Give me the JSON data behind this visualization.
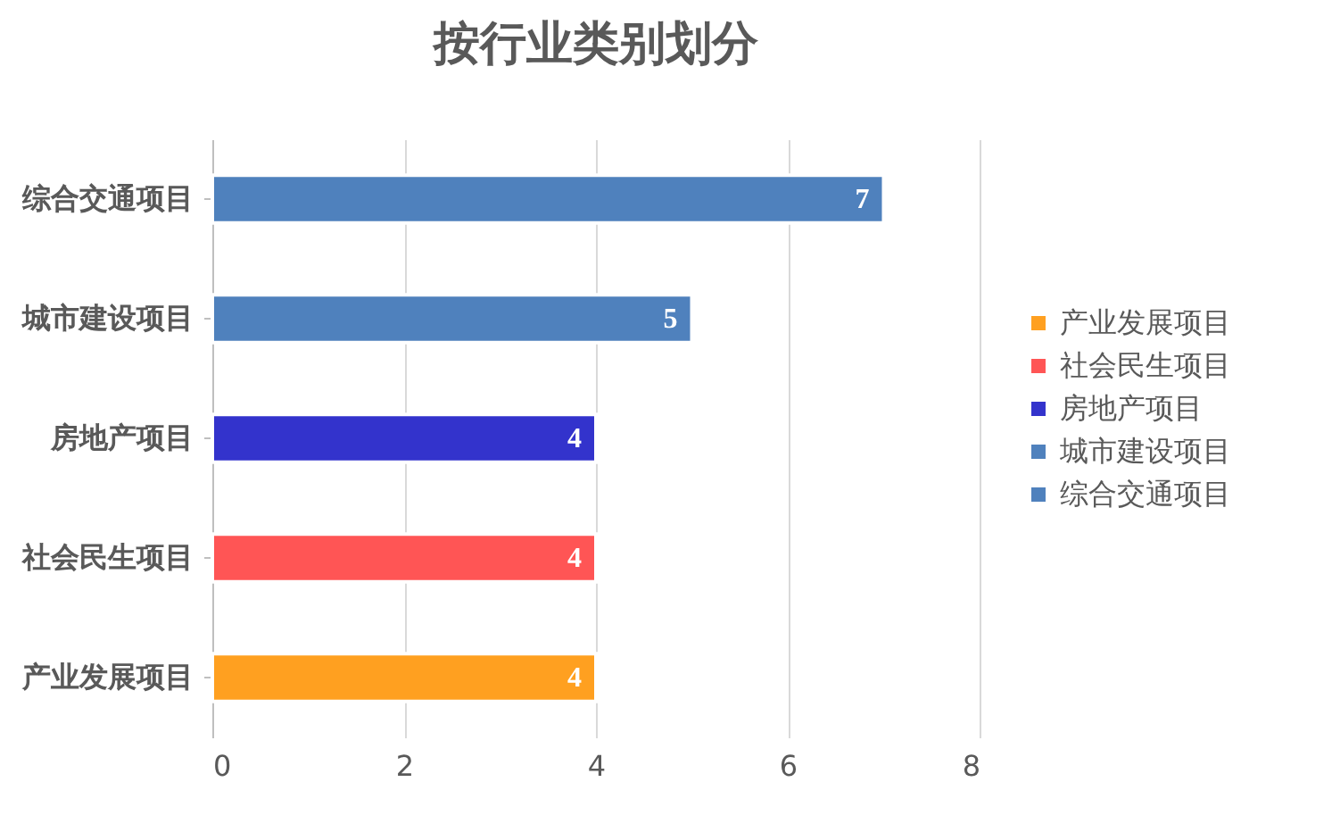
{
  "chart_data": {
    "type": "bar",
    "orientation": "horizontal",
    "title": "按行业类别划分",
    "categories": [
      "综合交通项目",
      "城市建设项目",
      "房地产项目",
      "社会民生项目",
      "产业发展项目"
    ],
    "series": [
      {
        "name": "产业发展项目",
        "color": "#ffa020",
        "values": [
          null,
          null,
          null,
          null,
          4
        ]
      },
      {
        "name": "社会民生项目",
        "color": "#ff5555",
        "values": [
          null,
          null,
          null,
          4,
          null
        ]
      },
      {
        "name": "房地产项目",
        "color": "#3333cc",
        "values": [
          null,
          null,
          4,
          null,
          null
        ]
      },
      {
        "name": "城市建设项目",
        "color": "#4f81bd",
        "values": [
          null,
          5,
          null,
          null,
          null
        ]
      },
      {
        "name": "综合交通项目",
        "color": "#4f81bd",
        "values": [
          7,
          null,
          null,
          null,
          null
        ]
      }
    ],
    "xlim": [
      0,
      8
    ],
    "xticks": [
      0,
      2,
      4,
      6,
      8
    ],
    "grid": "x",
    "legend": "right",
    "data_labels": true
  }
}
